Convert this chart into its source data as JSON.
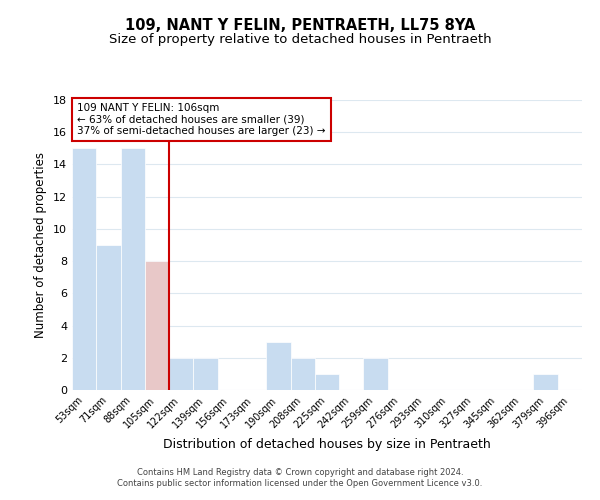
{
  "title": "109, NANT Y FELIN, PENTRAETH, LL75 8YA",
  "subtitle": "Size of property relative to detached houses in Pentraeth",
  "xlabel": "Distribution of detached houses by size in Pentraeth",
  "ylabel": "Number of detached properties",
  "bar_labels": [
    "53sqm",
    "71sqm",
    "88sqm",
    "105sqm",
    "122sqm",
    "139sqm",
    "156sqm",
    "173sqm",
    "190sqm",
    "208sqm",
    "225sqm",
    "242sqm",
    "259sqm",
    "276sqm",
    "293sqm",
    "310sqm",
    "327sqm",
    "345sqm",
    "362sqm",
    "379sqm",
    "396sqm"
  ],
  "bar_values": [
    15,
    9,
    15,
    8,
    2,
    2,
    0,
    0,
    3,
    2,
    1,
    0,
    2,
    0,
    0,
    0,
    0,
    0,
    0,
    1,
    0
  ],
  "bar_color_default": "#c8dcf0",
  "bar_color_highlight": "#e8c8c8",
  "highlight_index": 3,
  "vline_color": "#cc0000",
  "ylim": [
    0,
    18
  ],
  "yticks": [
    0,
    2,
    4,
    6,
    8,
    10,
    12,
    14,
    16,
    18
  ],
  "annotation_title": "109 NANT Y FELIN: 106sqm",
  "annotation_line1": "← 63% of detached houses are smaller (39)",
  "annotation_line2": "37% of semi-detached houses are larger (23) →",
  "annotation_box_color": "#ffffff",
  "annotation_box_edge": "#cc0000",
  "footer_line1": "Contains HM Land Registry data © Crown copyright and database right 2024.",
  "footer_line2": "Contains public sector information licensed under the Open Government Licence v3.0.",
  "background_color": "#ffffff",
  "grid_color": "#dde8f0",
  "title_fontsize": 10.5,
  "subtitle_fontsize": 9.5
}
